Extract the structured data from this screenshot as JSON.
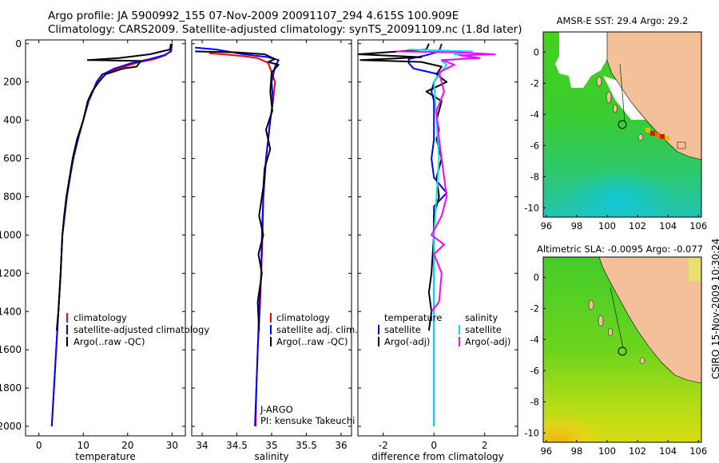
{
  "header": {
    "line1": "Argo profile: JA 5900992_155 07-Nov-2009 20091107_294 4.615S 100.909E",
    "line2": "Climatology: CARS2009. Satellite-adjusted climatology: synTS_20091109.nc (1.8d later)"
  },
  "footer": {
    "stamp": "CSIRO 15-Nov-2009 10:30:24"
  },
  "colors": {
    "climatology": "#ff0000",
    "satellite": "#0000ff",
    "argo": "#000000",
    "sat_diff": "#00e5ee",
    "argo_sal_diff": "#ff00ff",
    "land": "#f4c09a",
    "sea_green": "#33cc33"
  },
  "chart_data": [
    {
      "type": "line",
      "id": "temperature",
      "xlabel": "temperature",
      "ylabel": "",
      "xlim": [
        -3,
        33
      ],
      "ylim": [
        2050,
        -20
      ],
      "x_ticks": [
        "0",
        "10",
        "20",
        "30"
      ],
      "y_ticks": [
        "0",
        "200",
        "400",
        "600",
        "800",
        "1000",
        "1200",
        "1400",
        "1600",
        "1800",
        "2000"
      ],
      "legend": [
        "climatology",
        "satellite-adjusted climatology",
        "Argo(..raw -QC)"
      ],
      "series": [
        {
          "name": "climatology",
          "color": "#ff0000",
          "points": [
            [
              29.7,
              0
            ],
            [
              29.6,
              40
            ],
            [
              28.5,
              60
            ],
            [
              26,
              80
            ],
            [
              22,
              100
            ],
            [
              18,
              130
            ],
            [
              14.2,
              160
            ],
            [
              13,
              200
            ],
            [
              12.2,
              250
            ],
            [
              11.2,
              300
            ],
            [
              10,
              400
            ],
            [
              8.8,
              500
            ],
            [
              7.8,
              600
            ],
            [
              7,
              700
            ],
            [
              6.3,
              800
            ],
            [
              5.8,
              900
            ],
            [
              5.3,
              1000
            ],
            [
              4.9,
              1200
            ],
            [
              4.4,
              1400
            ],
            [
              3.9,
              1600
            ],
            [
              3.4,
              1800
            ],
            [
              2.9,
              2000
            ]
          ]
        },
        {
          "name": "satellite-adjusted climatology",
          "color": "#0000ff",
          "points": [
            [
              30,
              0
            ],
            [
              29.8,
              40
            ],
            [
              28.2,
              60
            ],
            [
              25,
              80
            ],
            [
              21,
              100
            ],
            [
              17,
              130
            ],
            [
              14.4,
              160
            ],
            [
              13,
              200
            ],
            [
              12.1,
              250
            ],
            [
              11.2,
              300
            ],
            [
              10,
              400
            ],
            [
              8.8,
              500
            ],
            [
              7.7,
              600
            ],
            [
              7,
              700
            ],
            [
              6.3,
              800
            ],
            [
              5.8,
              900
            ],
            [
              5.3,
              1000
            ],
            [
              4.9,
              1200
            ],
            [
              4.4,
              1400
            ],
            [
              3.9,
              1600
            ],
            [
              3.4,
              1800
            ],
            [
              2.9,
              2000
            ]
          ]
        },
        {
          "name": "Argo(..raw -QC)",
          "color": "#000000",
          "points": [
            [
              29.8,
              0
            ],
            [
              29.5,
              30
            ],
            [
              25,
              55
            ],
            [
              18,
              75
            ],
            [
              11,
              85
            ],
            [
              23,
              90
            ],
            [
              22,
              120
            ],
            [
              19,
              130
            ],
            [
              15,
              160
            ],
            [
              13.5,
              200
            ],
            [
              12,
              250
            ],
            [
              11,
              300
            ],
            [
              10,
              400
            ],
            [
              8.6,
              500
            ],
            [
              7.6,
              600
            ],
            [
              6.9,
              700
            ],
            [
              6.2,
              800
            ],
            [
              5.7,
              900
            ],
            [
              5.3,
              1000
            ],
            [
              4.9,
              1200
            ],
            [
              4.4,
              1400
            ],
            [
              4.0,
              1500
            ]
          ]
        }
      ]
    },
    {
      "type": "line",
      "id": "salinity",
      "xlabel": "salinity",
      "xlim": [
        33.85,
        36.15
      ],
      "ylim": [
        2050,
        -20
      ],
      "x_ticks": [
        "34",
        "34.5",
        "35",
        "35.5",
        "36"
      ],
      "legend": [
        "climatology",
        "satellite adj. clim.",
        "Argo(..raw -QC)"
      ],
      "annotation": [
        "J-ARGO",
        "PI: kensuke Takeuchi"
      ],
      "series": [
        {
          "name": "climatology",
          "color": "#ff0000",
          "points": [
            [
              34.1,
              50
            ],
            [
              34.3,
              55
            ],
            [
              34.6,
              65
            ],
            [
              34.8,
              75
            ],
            [
              34.95,
              100
            ],
            [
              35.05,
              200
            ],
            [
              35.02,
              300
            ],
            [
              34.98,
              400
            ],
            [
              34.95,
              500
            ],
            [
              34.92,
              600
            ],
            [
              34.9,
              700
            ],
            [
              34.88,
              800
            ],
            [
              34.87,
              1000
            ],
            [
              34.85,
              1200
            ],
            [
              34.83,
              1400
            ],
            [
              34.8,
              1600
            ],
            [
              34.78,
              1800
            ],
            [
              34.77,
              2000
            ]
          ]
        },
        {
          "name": "satellite adj. clim.",
          "color": "#0000ff",
          "points": [
            [
              33.9,
              20
            ],
            [
              34.2,
              30
            ],
            [
              34.6,
              55
            ],
            [
              34.95,
              70
            ],
            [
              35.1,
              85
            ],
            [
              35.05,
              120
            ],
            [
              35.0,
              200
            ],
            [
              35.02,
              300
            ],
            [
              34.98,
              400
            ],
            [
              34.95,
              500
            ],
            [
              34.92,
              600
            ],
            [
              34.9,
              700
            ],
            [
              34.88,
              800
            ],
            [
              34.86,
              1000
            ],
            [
              34.85,
              1200
            ],
            [
              34.82,
              1400
            ],
            [
              34.8,
              1600
            ],
            [
              34.78,
              1800
            ],
            [
              34.76,
              2000
            ]
          ]
        },
        {
          "name": "Argo(..raw -QC)",
          "color": "#000000",
          "points": [
            [
              33.9,
              40
            ],
            [
              34.5,
              45
            ],
            [
              34.9,
              55
            ],
            [
              35.05,
              80
            ],
            [
              34.95,
              95
            ],
            [
              35.1,
              110
            ],
            [
              35.0,
              150
            ],
            [
              34.98,
              250
            ],
            [
              35.01,
              350
            ],
            [
              34.92,
              450
            ],
            [
              34.98,
              550
            ],
            [
              34.9,
              650
            ],
            [
              34.88,
              750
            ],
            [
              34.82,
              900
            ],
            [
              34.88,
              1000
            ],
            [
              34.81,
              1100
            ],
            [
              34.86,
              1200
            ],
            [
              34.8,
              1350
            ],
            [
              34.82,
              1500
            ]
          ]
        }
      ]
    },
    {
      "type": "line",
      "id": "difference",
      "xlabel": "difference from climatology",
      "xlim": [
        -3,
        3.3
      ],
      "ylim": [
        2050,
        -20
      ],
      "x_ticks": [
        "-2",
        "0",
        "2"
      ],
      "legend": [
        "temperature",
        "satellite",
        "Argo(-adj)",
        "salinity",
        "satellite",
        "Argo(-adj)"
      ],
      "series": [
        {
          "name": "temperature satellite",
          "color": "#0000ff",
          "points": [
            [
              0.3,
              0
            ],
            [
              0.2,
              40
            ],
            [
              -0.3,
              60
            ],
            [
              -1.0,
              80
            ],
            [
              -1.0,
              100
            ],
            [
              -0.8,
              130
            ],
            [
              0.2,
              160
            ],
            [
              0,
              200
            ],
            [
              -0.1,
              250
            ],
            [
              0,
              300
            ],
            [
              0,
              400
            ],
            [
              0,
              500
            ],
            [
              -0.1,
              600
            ],
            [
              0,
              700
            ],
            [
              0.5,
              780
            ],
            [
              0,
              850
            ],
            [
              0,
              1000
            ],
            [
              0,
              1200
            ],
            [
              0,
              1400
            ],
            [
              0,
              1600
            ],
            [
              0,
              1800
            ],
            [
              0,
              2000
            ]
          ]
        },
        {
          "name": "temperature Argo(-adj)",
          "color": "#000000",
          "points": [
            [
              -0.2,
              0
            ],
            [
              -0.3,
              30
            ],
            [
              -3.0,
              55
            ],
            [
              -0.5,
              70
            ],
            [
              -2.9,
              85
            ],
            [
              -0.5,
              95
            ],
            [
              0.3,
              120
            ],
            [
              0.1,
              160
            ],
            [
              0.5,
              200
            ],
            [
              -0.3,
              250
            ],
            [
              0.3,
              300
            ],
            [
              0.1,
              400
            ],
            [
              0.2,
              450
            ],
            [
              0.1,
              500
            ],
            [
              0.3,
              600
            ],
            [
              0.1,
              700
            ],
            [
              0.2,
              800
            ],
            [
              0,
              900
            ],
            [
              0,
              1000
            ],
            [
              -0.1,
              1200
            ],
            [
              -0.2,
              1300
            ],
            [
              -0.1,
              1400
            ],
            [
              -0.2,
              1500
            ]
          ]
        },
        {
          "name": "salinity satellite",
          "color": "#00e5ee",
          "points": [
            [
              -1.0,
              30
            ],
            [
              1.5,
              40
            ],
            [
              0.8,
              55
            ],
            [
              1.7,
              70
            ],
            [
              0.3,
              90
            ],
            [
              0.5,
              110
            ],
            [
              0,
              200
            ],
            [
              0.1,
              400
            ],
            [
              0.2,
              600
            ],
            [
              0.1,
              800
            ],
            [
              0,
              1000
            ],
            [
              0,
              1200
            ],
            [
              0,
              1400
            ],
            [
              0,
              1600
            ],
            [
              0,
              1800
            ],
            [
              0,
              2000
            ]
          ]
        },
        {
          "name": "salinity Argo(-adj)",
          "color": "#ff00ff",
          "points": [
            [
              -1.5,
              40
            ],
            [
              1.0,
              45
            ],
            [
              2.4,
              55
            ],
            [
              1.0,
              60
            ],
            [
              1.8,
              75
            ],
            [
              0.3,
              85
            ],
            [
              0.8,
              110
            ],
            [
              0.2,
              150
            ],
            [
              0.4,
              250
            ],
            [
              0.1,
              350
            ],
            [
              0.2,
              500
            ],
            [
              0.3,
              600
            ],
            [
              0.5,
              800
            ],
            [
              0.3,
              900
            ],
            [
              -0.1,
              1000
            ],
            [
              0.4,
              1050
            ],
            [
              0,
              1100
            ],
            [
              0.3,
              1200
            ],
            [
              0.2,
              1350
            ],
            [
              -0.1,
              1400
            ]
          ]
        }
      ]
    },
    {
      "type": "heatmap",
      "id": "sst_map",
      "title": "AMSR-E SST: 29.4 Argo: 29.2",
      "xlim": [
        95.8,
        106.2
      ],
      "ylim": [
        -10.6,
        1.3
      ],
      "x_ticks": [
        "96",
        "98",
        "100",
        "102",
        "104",
        "106"
      ],
      "y_ticks": [
        "0",
        "-2",
        "-4",
        "-6",
        "-8",
        "-10"
      ],
      "argo_position": {
        "lon": 100.909,
        "lat": -4.615
      }
    },
    {
      "type": "heatmap",
      "id": "sla_map",
      "title": "Altimetric SLA: -0.0095 Argo: -0.077",
      "xlim": [
        95.8,
        106.2
      ],
      "ylim": [
        -10.6,
        1.3
      ],
      "x_ticks": [
        "96",
        "98",
        "100",
        "102",
        "104",
        "106"
      ],
      "y_ticks": [
        "0",
        "-2",
        "-4",
        "-6",
        "-8",
        "-10"
      ],
      "argo_position": {
        "lon": 100.909,
        "lat": -4.615
      }
    }
  ]
}
